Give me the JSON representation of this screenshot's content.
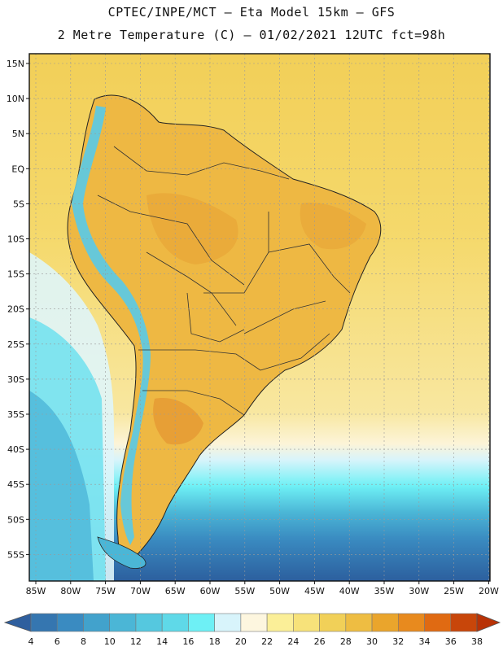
{
  "header": {
    "line1": "CPTEC/INPE/MCT –  Eta Model 15km – GFS",
    "line2": "2 Metre Temperature (C) – 01/02/2021 12UTC fct=98h"
  },
  "map": {
    "region": "South America",
    "lat_labels": [
      "15N",
      "10N",
      "5N",
      "EQ",
      "5S",
      "10S",
      "15S",
      "20S",
      "25S",
      "30S",
      "35S",
      "40S",
      "45S",
      "50S",
      "55S"
    ],
    "lon_labels": [
      "85W",
      "80W",
      "75W",
      "70W",
      "65W",
      "60W",
      "55W",
      "50W",
      "45W",
      "40W",
      "35W",
      "30W",
      "25W",
      "20W"
    ],
    "colors": {
      "ocean_warm": "#f2cf58",
      "ocean_mid": "#f6dc76",
      "land_hot": "#e9a93a",
      "land_warm": "#efba45",
      "andes_cold": "#5fc8e0",
      "south_cold": "#3a88bd",
      "south_deep": "#2c5f9e"
    }
  },
  "colorbar": {
    "values": [
      "4",
      "6",
      "8",
      "10",
      "12",
      "14",
      "16",
      "18",
      "20",
      "22",
      "24",
      "26",
      "28",
      "30",
      "32",
      "34",
      "36",
      "38"
    ],
    "colors": [
      "#2f5f9e",
      "#3576b0",
      "#3a8bc1",
      "#42a2cc",
      "#4bb6d6",
      "#55c8df",
      "#5fd9e8",
      "#6ef0f5",
      "#d8f4fb",
      "#fdf6df",
      "#fbef98",
      "#f7e27a",
      "#f1d058",
      "#eebd42",
      "#eaa52c",
      "#e88a1e",
      "#e06a12",
      "#c8460a",
      "#b83206"
    ]
  }
}
